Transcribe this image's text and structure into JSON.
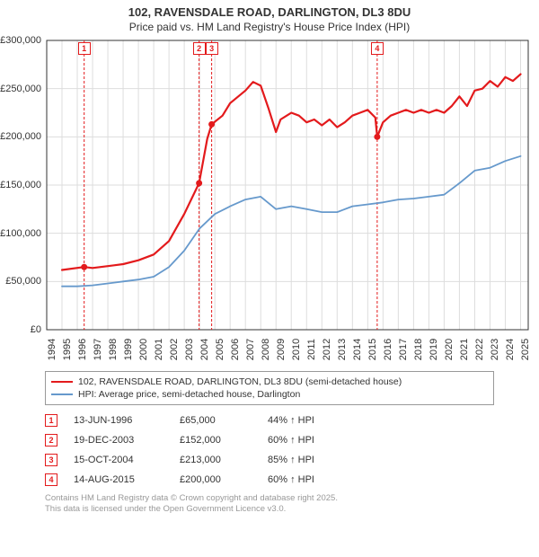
{
  "title_line1": "102, RAVENSDALE ROAD, DARLINGTON, DL3 8DU",
  "title_line2": "Price paid vs. HM Land Registry's House Price Index (HPI)",
  "chart": {
    "type": "line",
    "background_color": "#ffffff",
    "grid_color": "#dddddd",
    "axis_color": "#333333",
    "x_years": [
      1994,
      1995,
      1996,
      1997,
      1998,
      1999,
      2000,
      2001,
      2002,
      2003,
      2004,
      2005,
      2006,
      2007,
      2008,
      2009,
      2010,
      2011,
      2012,
      2013,
      2014,
      2015,
      2016,
      2017,
      2018,
      2019,
      2020,
      2021,
      2022,
      2023,
      2024,
      2025
    ],
    "xlim": [
      1994,
      2025.5
    ],
    "ylim": [
      0,
      300000
    ],
    "ytick_step": 50000,
    "ytick_labels": [
      "£0",
      "£50,000",
      "£100,000",
      "£150,000",
      "£200,000",
      "£250,000",
      "£300,000"
    ],
    "series": [
      {
        "name": "102, RAVENSDALE ROAD, DARLINGTON, DL3 8DU (semi-detached house)",
        "color": "#e31a1c",
        "line_width": 2.2,
        "data": [
          [
            1995.0,
            62000
          ],
          [
            1996.45,
            65000
          ],
          [
            1997.0,
            64000
          ],
          [
            1998.0,
            66000
          ],
          [
            1999.0,
            68000
          ],
          [
            2000.0,
            72000
          ],
          [
            2001.0,
            78000
          ],
          [
            2002.0,
            92000
          ],
          [
            2003.0,
            120000
          ],
          [
            2003.97,
            152000
          ],
          [
            2004.5,
            198000
          ],
          [
            2004.79,
            213000
          ],
          [
            2005.5,
            222000
          ],
          [
            2006.0,
            235000
          ],
          [
            2007.0,
            248000
          ],
          [
            2007.5,
            257000
          ],
          [
            2008.0,
            253000
          ],
          [
            2008.5,
            230000
          ],
          [
            2009.0,
            205000
          ],
          [
            2009.3,
            218000
          ],
          [
            2010.0,
            225000
          ],
          [
            2010.5,
            222000
          ],
          [
            2011.0,
            215000
          ],
          [
            2011.5,
            218000
          ],
          [
            2012.0,
            212000
          ],
          [
            2012.5,
            218000
          ],
          [
            2013.0,
            210000
          ],
          [
            2013.5,
            215000
          ],
          [
            2014.0,
            222000
          ],
          [
            2014.5,
            225000
          ],
          [
            2015.0,
            228000
          ],
          [
            2015.5,
            220000
          ],
          [
            2015.62,
            200000
          ],
          [
            2016.0,
            215000
          ],
          [
            2016.5,
            222000
          ],
          [
            2017.0,
            225000
          ],
          [
            2017.5,
            228000
          ],
          [
            2018.0,
            225000
          ],
          [
            2018.5,
            228000
          ],
          [
            2019.0,
            225000
          ],
          [
            2019.5,
            228000
          ],
          [
            2020.0,
            225000
          ],
          [
            2020.5,
            232000
          ],
          [
            2021.0,
            242000
          ],
          [
            2021.5,
            232000
          ],
          [
            2022.0,
            248000
          ],
          [
            2022.5,
            250000
          ],
          [
            2023.0,
            258000
          ],
          [
            2023.5,
            252000
          ],
          [
            2024.0,
            262000
          ],
          [
            2024.5,
            258000
          ],
          [
            2025.0,
            265000
          ]
        ]
      },
      {
        "name": "HPI: Average price, semi-detached house, Darlington",
        "color": "#6699cc",
        "line_width": 1.8,
        "data": [
          [
            1995.0,
            45000
          ],
          [
            1996.0,
            45000
          ],
          [
            1997.0,
            46000
          ],
          [
            1998.0,
            48000
          ],
          [
            1999.0,
            50000
          ],
          [
            2000.0,
            52000
          ],
          [
            2001.0,
            55000
          ],
          [
            2002.0,
            65000
          ],
          [
            2003.0,
            82000
          ],
          [
            2004.0,
            105000
          ],
          [
            2005.0,
            120000
          ],
          [
            2006.0,
            128000
          ],
          [
            2007.0,
            135000
          ],
          [
            2008.0,
            138000
          ],
          [
            2009.0,
            125000
          ],
          [
            2010.0,
            128000
          ],
          [
            2011.0,
            125000
          ],
          [
            2012.0,
            122000
          ],
          [
            2013.0,
            122000
          ],
          [
            2014.0,
            128000
          ],
          [
            2015.0,
            130000
          ],
          [
            2016.0,
            132000
          ],
          [
            2017.0,
            135000
          ],
          [
            2018.0,
            136000
          ],
          [
            2019.0,
            138000
          ],
          [
            2020.0,
            140000
          ],
          [
            2021.0,
            152000
          ],
          [
            2022.0,
            165000
          ],
          [
            2023.0,
            168000
          ],
          [
            2024.0,
            175000
          ],
          [
            2025.0,
            180000
          ]
        ]
      }
    ],
    "transactions": [
      {
        "n": 1,
        "year": 1996.45,
        "price": 65000,
        "date": "13-JUN-1996",
        "price_label": "£65,000",
        "pct_label": "44% ↑ HPI"
      },
      {
        "n": 2,
        "year": 2003.97,
        "price": 152000,
        "date": "19-DEC-2003",
        "price_label": "£152,000",
        "pct_label": "60% ↑ HPI"
      },
      {
        "n": 3,
        "year": 2004.79,
        "price": 213000,
        "date": "15-OCT-2004",
        "price_label": "£213,000",
        "pct_label": "85% ↑ HPI"
      },
      {
        "n": 4,
        "year": 2015.62,
        "price": 200000,
        "date": "14-AUG-2015",
        "price_label": "£200,000",
        "pct_label": "60% ↑ HPI"
      }
    ],
    "marker_border_color": "#e31a1c",
    "marker_vline_color": "#e31a1c",
    "marker_vline_dash": "3,2"
  },
  "legend_title_0": "102, RAVENSDALE ROAD, DARLINGTON, DL3 8DU (semi-detached house)",
  "legend_title_1": "HPI: Average price, semi-detached house, Darlington",
  "footer_line1": "Contains HM Land Registry data © Crown copyright and database right 2025.",
  "footer_line2": "This data is licensed under the Open Government Licence v3.0."
}
